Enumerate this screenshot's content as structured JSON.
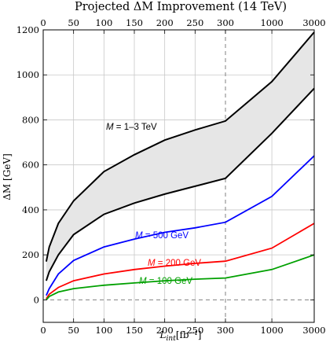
{
  "chart_data": {
    "type": "line",
    "title": "Projected ΔM Improvement (14 TeV)",
    "ylabel": "ΔM [GeV]",
    "xlabel_main": "L",
    "xlabel_sub": "int",
    "xlabel_unit": "[fb⁻¹]",
    "x_scale": "linear from 0 to 300, logarithmic from 300 to 3000",
    "xlim": [
      0,
      3000
    ],
    "ylim": [
      -100,
      1200
    ],
    "grid": true,
    "x_ticks_linear": [
      "0",
      "50",
      "100",
      "150",
      "200",
      "250",
      "300"
    ],
    "x_ticks_log": [
      "1000",
      "3000"
    ],
    "y_ticks": [
      0,
      200,
      400,
      600,
      800,
      1000,
      1200
    ],
    "vline_x": 300,
    "hline_y": 0,
    "band": {
      "label_prefix": "M",
      "label_rest": " = 1–3 TeV",
      "color": "#000000",
      "fill": "#e6e6e6",
      "upper": [
        [
          5,
          170
        ],
        [
          10,
          235
        ],
        [
          25,
          340
        ],
        [
          50,
          440
        ],
        [
          100,
          570
        ],
        [
          150,
          645
        ],
        [
          200,
          710
        ],
        [
          250,
          755
        ],
        [
          300,
          795
        ],
        [
          1000,
          970
        ],
        [
          3000,
          1190
        ]
      ],
      "lower": [
        [
          5,
          85
        ],
        [
          10,
          125
        ],
        [
          25,
          200
        ],
        [
          50,
          290
        ],
        [
          100,
          380
        ],
        [
          150,
          430
        ],
        [
          200,
          470
        ],
        [
          250,
          505
        ],
        [
          300,
          540
        ],
        [
          1000,
          740
        ],
        [
          3000,
          940
        ]
      ]
    },
    "series": [
      {
        "label_prefix": "M",
        "label_rest": " = 500 GeV",
        "color": "#0000ff",
        "points": [
          [
            5,
            20
          ],
          [
            10,
            50
          ],
          [
            25,
            115
          ],
          [
            50,
            175
          ],
          [
            100,
            235
          ],
          [
            150,
            270
          ],
          [
            200,
            300
          ],
          [
            250,
            320
          ],
          [
            300,
            345
          ],
          [
            1000,
            460
          ],
          [
            3000,
            640
          ]
        ]
      },
      {
        "label_prefix": "M",
        "label_rest": " = 200 GeV",
        "color": "#ff0000",
        "points": [
          [
            5,
            5
          ],
          [
            10,
            25
          ],
          [
            25,
            55
          ],
          [
            50,
            85
          ],
          [
            100,
            115
          ],
          [
            150,
            135
          ],
          [
            200,
            150
          ],
          [
            250,
            162
          ],
          [
            300,
            172
          ],
          [
            1000,
            230
          ],
          [
            3000,
            340
          ]
        ]
      },
      {
        "label_prefix": "M",
        "label_rest": " = 100 GeV",
        "color": "#00a000",
        "points": [
          [
            5,
            0
          ],
          [
            10,
            15
          ],
          [
            25,
            35
          ],
          [
            50,
            50
          ],
          [
            100,
            65
          ],
          [
            150,
            75
          ],
          [
            200,
            85
          ],
          [
            250,
            92
          ],
          [
            300,
            97
          ],
          [
            1000,
            135
          ],
          [
            3000,
            200
          ]
        ]
      }
    ]
  }
}
